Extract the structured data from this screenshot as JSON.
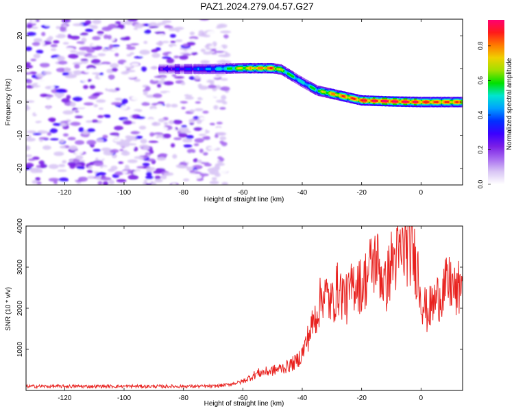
{
  "title": "PAZ1.2024.279.04.57.G27",
  "colors": {
    "snr_line": "#e8211e",
    "background": "#ffffff",
    "colormap": [
      "#ffffff",
      "#d9c6f5",
      "#a86cf0",
      "#7a1fe6",
      "#3b00ff",
      "#0030ff",
      "#00a0ff",
      "#00e5d0",
      "#00e000",
      "#a0e000",
      "#f0d000",
      "#ff7a00",
      "#ff1a1a",
      "#ff0070"
    ]
  },
  "chart_data": [
    {
      "type": "heatmap",
      "name": "spectrogram",
      "xlabel": "Height of straight line (km)",
      "ylabel": "Frequency (Hz)",
      "xlim": [
        -133,
        14
      ],
      "ylim": [
        -25,
        25
      ],
      "xticks": [
        -120,
        -100,
        -80,
        -60,
        -40,
        -20,
        0
      ],
      "yticks": [
        -20,
        -10,
        0,
        10,
        20
      ],
      "ridge": {
        "x": [
          -88,
          -80,
          -70,
          -60,
          -50,
          -47,
          -40,
          -35,
          -30,
          -25,
          -20,
          -10,
          0,
          14
        ],
        "frequency": [
          10,
          10,
          10,
          10.2,
          10.2,
          9.8,
          6,
          3.5,
          2.5,
          1.5,
          0.5,
          0.2,
          0,
          0
        ],
        "amplitude": [
          0.25,
          0.3,
          0.4,
          0.65,
          0.75,
          0.6,
          0.45,
          0.55,
          0.7,
          0.75,
          0.8,
          0.85,
          0.8,
          0.75
        ]
      },
      "noise_region_x": [
        -133,
        -65
      ],
      "colorbar": {
        "label": "Normalized spectral amplitude",
        "ticks": [
          "0.0",
          "0.2",
          "0.4",
          "0.6",
          "0.8"
        ],
        "range": [
          0,
          0.95
        ]
      }
    },
    {
      "type": "line",
      "name": "snr",
      "xlabel": "Height of straight line (km)",
      "ylabel": "SNR (10 * v/v)",
      "xlim": [
        -133,
        14
      ],
      "ylim": [
        0,
        4000
      ],
      "xticks": [
        -120,
        -100,
        -80,
        -60,
        -40,
        -20,
        0
      ],
      "yticks": [
        1000,
        2000,
        3000,
        4000
      ],
      "x": [
        -133,
        -120,
        -100,
        -80,
        -70,
        -65,
        -60,
        -55,
        -50,
        -45,
        -42,
        -40,
        -37,
        -35,
        -33,
        -30,
        -28,
        -25,
        -22,
        -20,
        -17,
        -15,
        -12,
        -10,
        -7,
        -5,
        -3,
        -1,
        0,
        2,
        5,
        8,
        10,
        12,
        14
      ],
      "y": [
        100,
        100,
        100,
        100,
        100,
        140,
        220,
        420,
        480,
        580,
        700,
        900,
        1500,
        1900,
        2400,
        2100,
        2500,
        2200,
        2700,
        2500,
        3000,
        3200,
        2500,
        3100,
        3300,
        3500,
        3400,
        2900,
        2300,
        1900,
        2200,
        2500,
        2600,
        2300,
        2800
      ]
    }
  ]
}
